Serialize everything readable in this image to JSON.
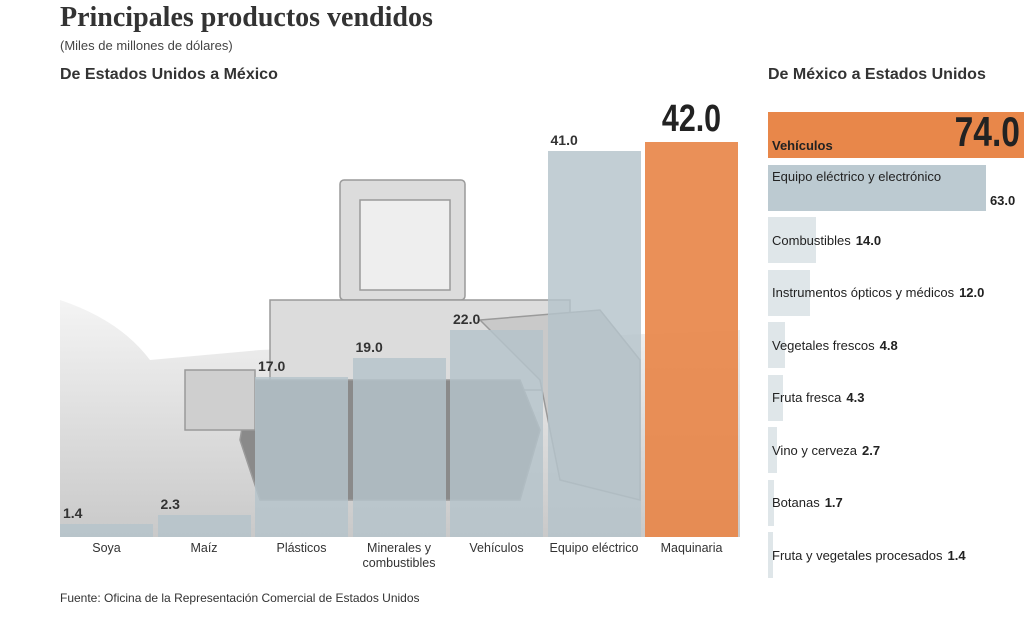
{
  "header": {
    "title": "Principales productos vendidos",
    "subtitle": "(Miles de millones de dólares)"
  },
  "chart_data": [
    {
      "type": "bar",
      "orientation": "vertical",
      "title": "De Estados Unidos a México",
      "categories": [
        "Soya",
        "Maíz",
        "Plásticos",
        "Minerales y combustibles",
        "Vehículos",
        "Equipo eléctrico",
        "Maquinaria"
      ],
      "values": [
        1.4,
        2.3,
        17.0,
        19.0,
        22.0,
        41.0,
        42.0
      ],
      "value_labels": [
        "1.4",
        "2.3",
        "17.0",
        "19.0",
        "22.0",
        "41.0",
        "42.0"
      ],
      "colors": [
        "#b4c3ca",
        "#b4c3ca",
        "#b4c3ca",
        "#b4c3ca",
        "#b4c3ca",
        "#b4c3ca",
        "#e8874a"
      ]
    },
    {
      "type": "bar",
      "orientation": "horizontal",
      "title": "De México a Estados Unidos",
      "categories": [
        "Vehículos",
        "Equipo eléctrico y electrónico",
        "Combustibles",
        "Instrumentos ópticos y médicos",
        "Vegetales frescos",
        "Fruta fresca",
        "Vino y cerveza",
        "Botanas",
        "Fruta y vegetales procesados"
      ],
      "values": [
        74.0,
        63.0,
        14.0,
        12.0,
        4.8,
        4.3,
        2.7,
        1.7,
        1.4
      ],
      "value_labels": [
        "74.0",
        "63.0",
        "14.0",
        "12.0",
        "4.8",
        "4.3",
        "2.7",
        "1.7",
        "1.4"
      ],
      "colors": [
        "#e8874a",
        "#bccad1",
        "#dfe6e9",
        "#dfe6e9",
        "#dfe6e9",
        "#dfe6e9",
        "#dfe6e9",
        "#dfe6e9",
        "#dfe6e9"
      ]
    }
  ],
  "source": "Fuente: Oficina de la Representación Comercial de Estados Unidos"
}
